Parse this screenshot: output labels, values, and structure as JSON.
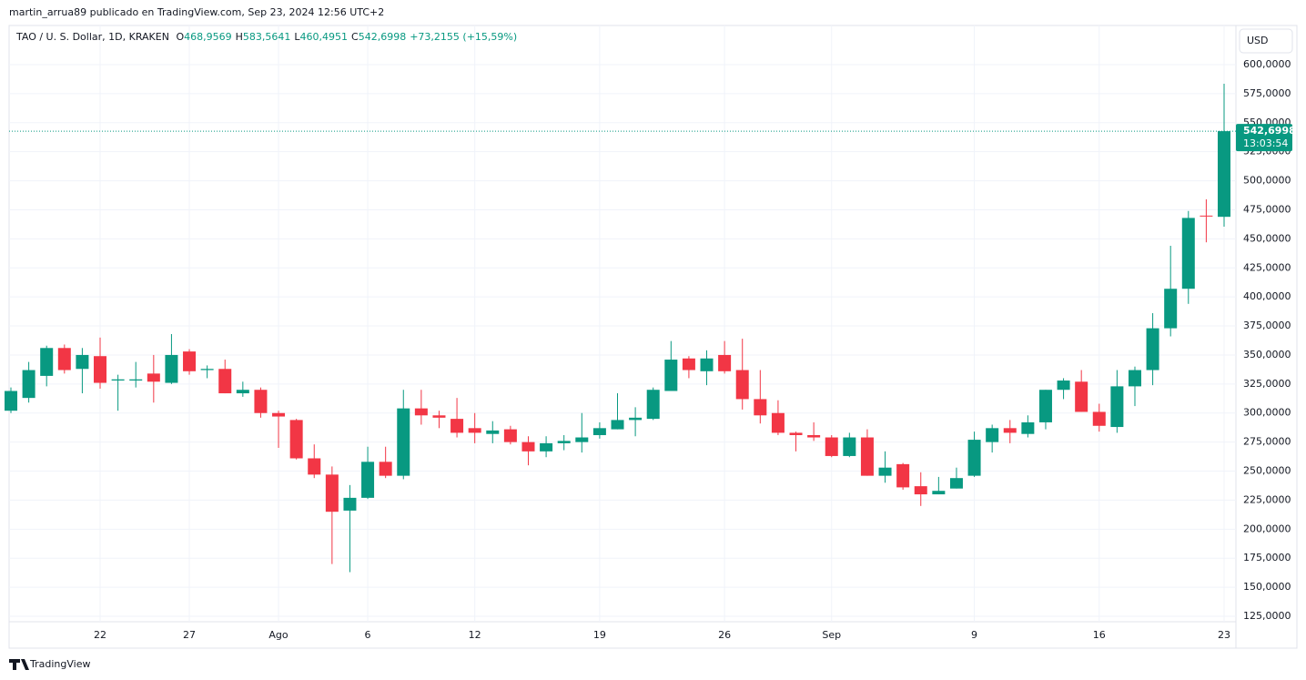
{
  "header": {
    "byline": "martin_arrua89 publicado en TradingView.com, Sep 23, 2024 12:56 UTC+2",
    "symbol": "TAO / U. S. Dollar, 1D, KRAKEN",
    "ohlc": [
      {
        "key": "O",
        "value": "468,9569"
      },
      {
        "key": "H",
        "value": "583,5641"
      },
      {
        "key": "L",
        "value": "460,4951"
      },
      {
        "key": "C",
        "value": "542,6998"
      }
    ],
    "change": "+73,2155 (+15,59%)",
    "currency": "USD"
  },
  "footer": {
    "brand": "TradingView"
  },
  "chart_data": {
    "type": "candlestick",
    "categories": [
      null,
      null,
      null,
      null,
      null,
      "22",
      null,
      null,
      null,
      null,
      "27",
      null,
      null,
      null,
      null,
      "Ago",
      null,
      null,
      null,
      null,
      "6",
      null,
      null,
      null,
      null,
      null,
      "12",
      null,
      null,
      null,
      null,
      null,
      null,
      "19",
      null,
      null,
      null,
      null,
      null,
      null,
      "26",
      null,
      null,
      null,
      null,
      null,
      "Sep",
      null,
      null,
      null,
      null,
      null,
      null,
      null,
      "9",
      null,
      null,
      null,
      null,
      null,
      null,
      "16",
      null,
      null,
      null,
      null,
      null,
      null,
      "23"
    ],
    "open": [
      302,
      313,
      332,
      356,
      338,
      349,
      328,
      328,
      334,
      326,
      353,
      337,
      338,
      317,
      320,
      300,
      294,
      261,
      247,
      216,
      227,
      258,
      246,
      304,
      298,
      295,
      287,
      282,
      286,
      275,
      267,
      274,
      275,
      281,
      286,
      294,
      295,
      319,
      347,
      336,
      350,
      337,
      312,
      300,
      283,
      281,
      279,
      263,
      279,
      246,
      256,
      237,
      230,
      235,
      246,
      275,
      287,
      282,
      292,
      320,
      327,
      301,
      288,
      323,
      337,
      373,
      407,
      470,
      468.9569
    ],
    "high": [
      322,
      344,
      358,
      359,
      356,
      365,
      333,
      344,
      350,
      368,
      355,
      341,
      346,
      327,
      322,
      302,
      295,
      273,
      254,
      238,
      271,
      271,
      320,
      320,
      302,
      313,
      300,
      293,
      289,
      280,
      280,
      281,
      300,
      292,
      317,
      305,
      322,
      362,
      349,
      354,
      362,
      364,
      337,
      311,
      284,
      292,
      281,
      283,
      286,
      267,
      257,
      249,
      245,
      253,
      284,
      290,
      294,
      298,
      320,
      330,
      337,
      308,
      337,
      340,
      386,
      444,
      474,
      484,
      583.5641
    ],
    "low": [
      300,
      309,
      323,
      334,
      317,
      321,
      302,
      322,
      309,
      325,
      333,
      330,
      317,
      314,
      296,
      270,
      260,
      244,
      170,
      163,
      226,
      244,
      243,
      290,
      287,
      279,
      274,
      274,
      273,
      255,
      262,
      268,
      266,
      278,
      286,
      280,
      294,
      319,
      330,
      324,
      334,
      303,
      291,
      281,
      267,
      276,
      262,
      262,
      246,
      240,
      234,
      220,
      230,
      235,
      245,
      266,
      274,
      279,
      286,
      312,
      301,
      284,
      283,
      306,
      324,
      366,
      394,
      447,
      460.4951
    ],
    "close": [
      319,
      337,
      356,
      337,
      350,
      326,
      329,
      329,
      327,
      350,
      336,
      338,
      317,
      320,
      300,
      297,
      261,
      247,
      215,
      227,
      258,
      246,
      304,
      298,
      296,
      283,
      283,
      285,
      275,
      267,
      274,
      276,
      279,
      287,
      294,
      296,
      320,
      346,
      337,
      347,
      336,
      312,
      298,
      283,
      281,
      279,
      263,
      279,
      246,
      253,
      236,
      230,
      233,
      244,
      277,
      287,
      283,
      292,
      320,
      328,
      301,
      289,
      323,
      337,
      373,
      407,
      468,
      469.4843,
      542.6998
    ],
    "up_color": "#089981",
    "down_color": "#f23645",
    "ylim": [
      120.3,
      633.7
    ],
    "yticks": [
      {
        "value": 125,
        "label": "125,0000"
      },
      {
        "value": 150,
        "label": "150,0000"
      },
      {
        "value": 175,
        "label": "175,0000"
      },
      {
        "value": 200,
        "label": "200,0000"
      },
      {
        "value": 225,
        "label": "225,0000"
      },
      {
        "value": 250,
        "label": "250,0000"
      },
      {
        "value": 275,
        "label": "275,0000"
      },
      {
        "value": 300,
        "label": "300,0000"
      },
      {
        "value": 325,
        "label": "325,0000"
      },
      {
        "value": 350,
        "label": "350,0000"
      },
      {
        "value": 375,
        "label": "375,0000"
      },
      {
        "value": 400,
        "label": "400,0000"
      },
      {
        "value": 425,
        "label": "425,0000"
      },
      {
        "value": 450,
        "label": "450,0000"
      },
      {
        "value": 475,
        "label": "475,0000"
      },
      {
        "value": 500,
        "label": "500,0000"
      },
      {
        "value": 525,
        "label": "525,0000"
      },
      {
        "value": 550,
        "label": "550,0000"
      },
      {
        "value": 575,
        "label": "575,0000"
      },
      {
        "value": 600,
        "label": "600,0000"
      }
    ],
    "last_price_label": "542,6998",
    "countdown": "13:03:54",
    "grid": true
  }
}
